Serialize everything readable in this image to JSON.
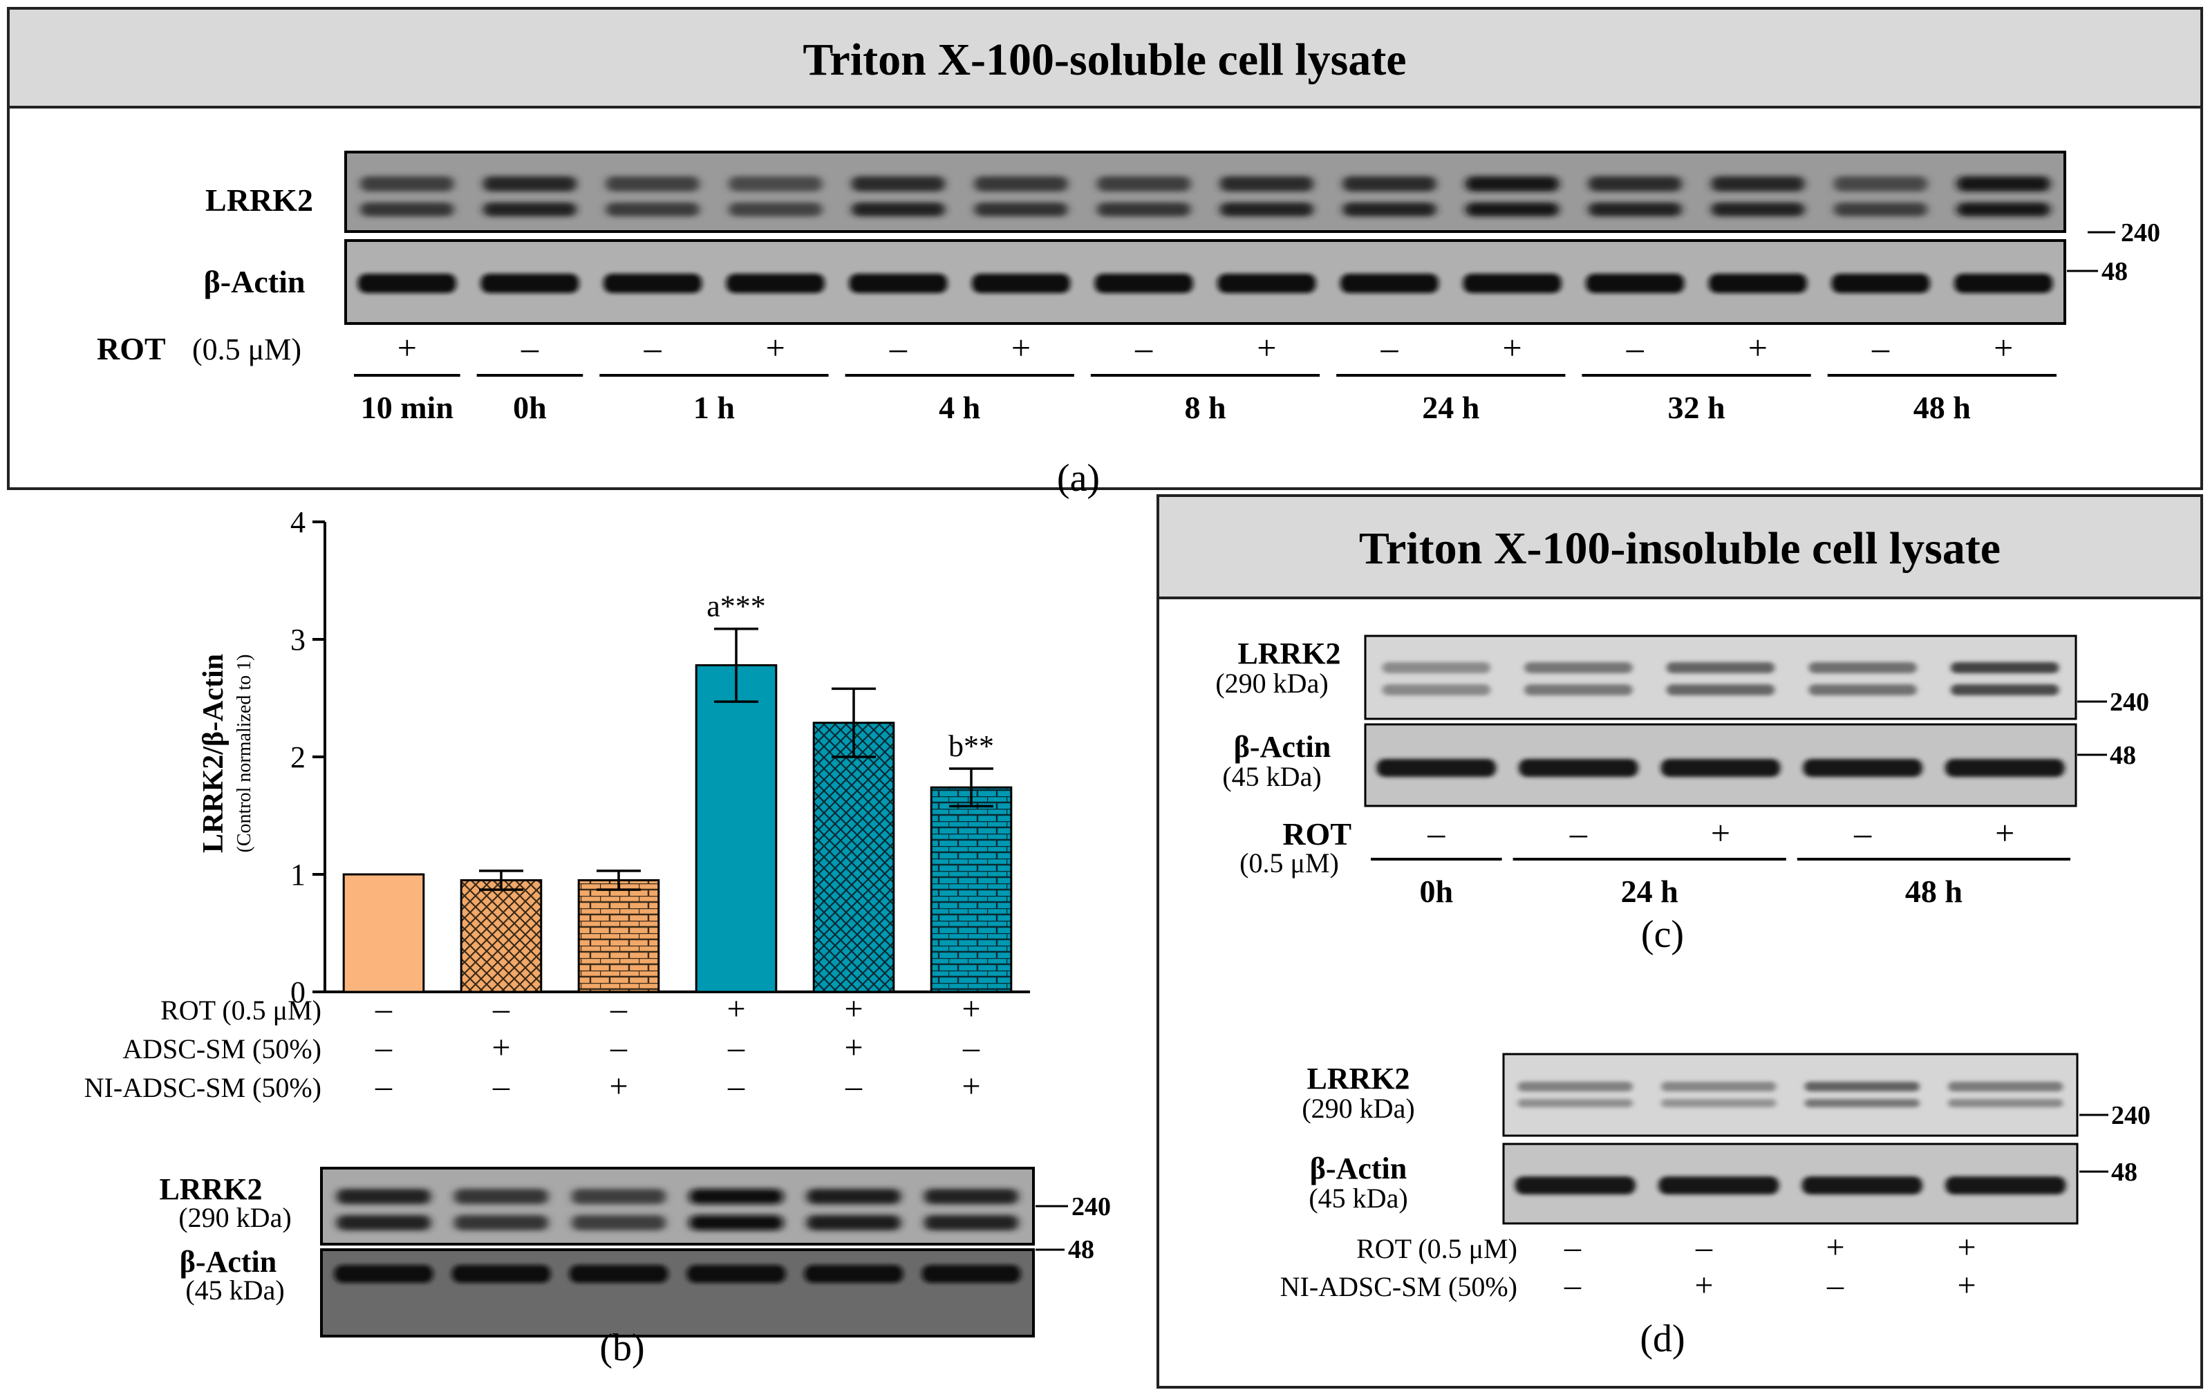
{
  "panel_a": {
    "header": "Triton X-100-soluble cell lysate",
    "caption": "(a)",
    "lrrk2_label": "LRRK2",
    "actin_label": "β-Actin",
    "marker_240": "240",
    "marker_48": "48",
    "rot_label": "ROT",
    "rot_conc": "(0.5 μM)",
    "rot_signs": [
      "+",
      "–",
      "–",
      "+",
      "–",
      "+",
      "–",
      "+",
      "–",
      "+",
      "–",
      "+",
      "–",
      "+"
    ],
    "time_groups": [
      "10 min",
      "0h",
      "1 h",
      "4 h",
      "8 h",
      "24 h",
      "32 h",
      "48 h"
    ],
    "lrrk2_intensity": [
      0.55,
      0.8,
      0.5,
      0.4,
      0.75,
      0.6,
      0.55,
      0.75,
      0.75,
      0.95,
      0.75,
      0.8,
      0.45,
      0.95
    ]
  },
  "panel_b": {
    "caption": "(b)",
    "ylabel": "LRRK2/β-Actin",
    "ylabel_sub": "(Control normalized to 1)",
    "row_labels": [
      "ROT (0.5 μM)",
      "ADSC-SM (50%)",
      "NI-ADSC-SM (50%)"
    ],
    "rows": [
      [
        "–",
        "–",
        "–",
        "+",
        "+",
        "+"
      ],
      [
        "–",
        "+",
        "–",
        "–",
        "+",
        "–"
      ],
      [
        "–",
        "–",
        "+",
        "–",
        "–",
        "+"
      ]
    ],
    "lrrk2_label": "LRRK2",
    "lrrk2_kda": "(290 kDa)",
    "actin_label": "β-Actin",
    "actin_kda": "(45 kDa)",
    "marker_240": "240",
    "marker_48": "48",
    "lrrk2_intensity": [
      0.7,
      0.5,
      0.4,
      1.0,
      0.75,
      0.7
    ]
  },
  "chart_data": {
    "type": "bar",
    "title": "",
    "ylabel": "LRRK2/β-Actin",
    "ylim": [
      0,
      4
    ],
    "yticks": [
      "0",
      "1",
      "2",
      "3",
      "4"
    ],
    "values": [
      1.0,
      0.95,
      0.95,
      2.78,
      2.29,
      1.74
    ],
    "errors": [
      0,
      0.08,
      0.08,
      0.31,
      0.29,
      0.16
    ],
    "annotations": [
      "",
      "",
      "",
      "a***",
      "",
      "b**"
    ],
    "colors": [
      "#fbb57c",
      "#f2a868",
      "#f2a868",
      "#0099b2",
      "#0099b2",
      "#0099b2"
    ],
    "patterns": [
      "solid",
      "crosshatch",
      "brick",
      "solid",
      "crosshatch",
      "brick"
    ]
  },
  "panel_c": {
    "header": "Triton X-100-insoluble cell lysate",
    "caption": "(c)",
    "lrrk2_label": "LRRK2",
    "lrrk2_kda": "(290 kDa)",
    "actin_label": "β-Actin",
    "actin_kda": "(45 kDa)",
    "marker_240": "240",
    "marker_48": "48",
    "rot_label": "ROT",
    "rot_conc": "(0.5 μM)",
    "rot_signs": [
      "–",
      "–",
      "+",
      "–",
      "+"
    ],
    "time_groups": [
      "0h",
      "24 h",
      "48 h"
    ],
    "lrrk2_intensity": [
      0.25,
      0.4,
      0.55,
      0.45,
      0.8
    ]
  },
  "panel_d": {
    "caption": "(d)",
    "lrrk2_label": "LRRK2",
    "lrrk2_kda": "(290 kDa)",
    "actin_label": "β-Actin",
    "actin_kda": "(45 kDa)",
    "marker_240": "240",
    "marker_48": "48",
    "row_labels": [
      "ROT (0.5 μM)",
      "NI-ADSC-SM (50%)"
    ],
    "rows": [
      [
        "–",
        "–",
        "+",
        "+"
      ],
      [
        "–",
        "+",
        "–",
        "+"
      ]
    ],
    "lrrk2_intensity": [
      0.35,
      0.3,
      0.6,
      0.4
    ]
  }
}
